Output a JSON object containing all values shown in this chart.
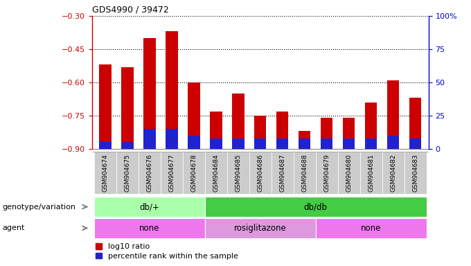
{
  "title": "GDS4990 / 39472",
  "samples": [
    "GSM904674",
    "GSM904675",
    "GSM904676",
    "GSM904677",
    "GSM904678",
    "GSM904684",
    "GSM904685",
    "GSM904686",
    "GSM904687",
    "GSM904688",
    "GSM904679",
    "GSM904680",
    "GSM904681",
    "GSM904682",
    "GSM904683"
  ],
  "log10_ratio": [
    -0.52,
    -0.53,
    -0.4,
    -0.37,
    -0.6,
    -0.73,
    -0.65,
    -0.75,
    -0.73,
    -0.82,
    -0.76,
    -0.76,
    -0.69,
    -0.59,
    -0.67
  ],
  "percentile_rank": [
    5,
    5,
    15,
    15,
    10,
    8,
    8,
    8,
    8,
    8,
    8,
    8,
    8,
    10,
    8
  ],
  "ylim_left": [
    -0.9,
    -0.3
  ],
  "ylim_right": [
    0,
    100
  ],
  "yticks_left": [
    -0.9,
    -0.75,
    -0.6,
    -0.45,
    -0.3
  ],
  "yticks_right": [
    0,
    25,
    50,
    75,
    100
  ],
  "bar_color_red": "#cc0000",
  "bar_color_blue": "#2222cc",
  "bg_color": "#ffffff",
  "genotype_groups": [
    {
      "label": "db/+",
      "start": 0,
      "end": 5,
      "color": "#aaffaa"
    },
    {
      "label": "db/db",
      "start": 5,
      "end": 15,
      "color": "#44cc44"
    }
  ],
  "agent_groups": [
    {
      "label": "none",
      "start": 0,
      "end": 5,
      "color": "#ee77ee"
    },
    {
      "label": "rosiglitazone",
      "start": 5,
      "end": 10,
      "color": "#dd99dd"
    },
    {
      "label": "none",
      "start": 10,
      "end": 15,
      "color": "#ee77ee"
    }
  ],
  "genotype_label": "genotype/variation",
  "agent_label": "agent",
  "legend_red": "log10 ratio",
  "legend_blue": "percentile rank within the sample",
  "bar_width": 0.55,
  "tick_bg_color": "#cccccc",
  "spine_color_left": "#cc0000",
  "spine_color_right": "#0000cc"
}
